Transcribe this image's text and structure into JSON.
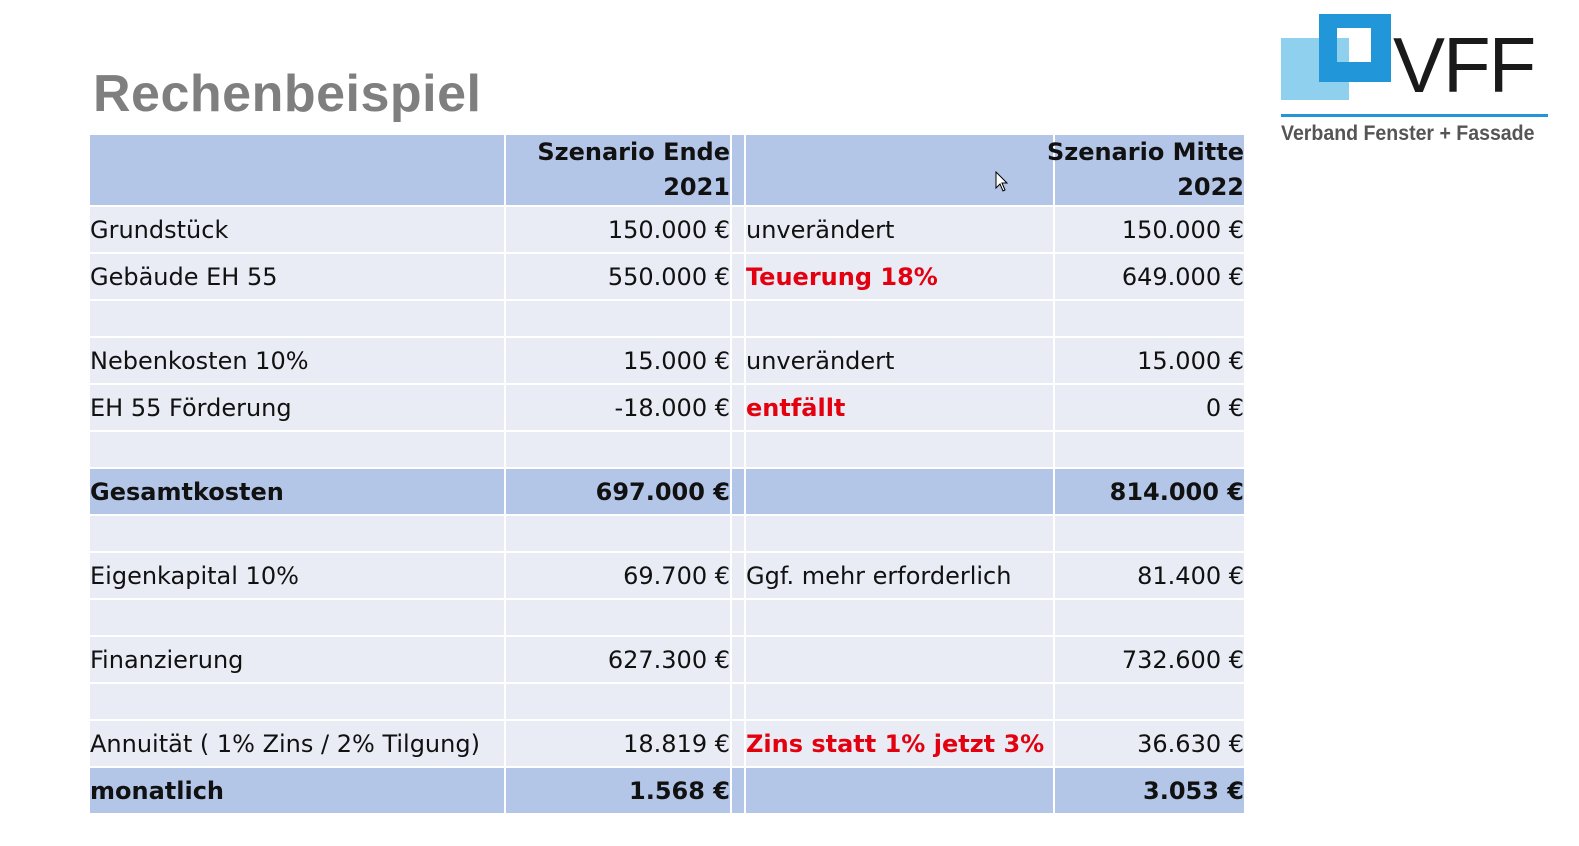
{
  "title": "Rechenbeispiel",
  "logo": {
    "name": "VFF",
    "subtitle": "Verband Fenster + Fassade"
  },
  "table": {
    "header": {
      "col2_line1": "Szenario Ende",
      "col2_line2": "2021",
      "col5_line1": "Szenario Mitte",
      "col5_line2": "2022"
    },
    "rows": [
      {
        "label": "Grundstück",
        "v2021": "150.000 €",
        "note": "unverändert",
        "note_red": false,
        "v2022": "150.000 €"
      },
      {
        "label": "Gebäude EH 55",
        "v2021": "550.000 €",
        "note": "Teuerung 18%",
        "note_red": true,
        "v2022": "649.000 €"
      },
      {
        "label": "",
        "v2021": "",
        "note": "",
        "note_red": false,
        "v2022": ""
      },
      {
        "label": "Nebenkosten 10%",
        "v2021": "15.000 €",
        "note": "unverändert",
        "note_red": false,
        "v2022": "15.000 €"
      },
      {
        "label": "EH 55 Förderung",
        "v2021": "-18.000 €",
        "note": "entfällt",
        "note_red": true,
        "v2022": "0 €"
      },
      {
        "label": "",
        "v2021": "",
        "note": "",
        "note_red": false,
        "v2022": ""
      },
      {
        "label": "Gesamtkosten",
        "v2021": "697.000 €",
        "note": "",
        "note_red": false,
        "v2022": "814.000 €",
        "total": true
      },
      {
        "label": "",
        "v2021": "",
        "note": "",
        "note_red": false,
        "v2022": ""
      },
      {
        "label": "Eigenkapital 10%",
        "v2021": "69.700 €",
        "note": "Ggf. mehr erforderlich",
        "note_red": false,
        "v2022": "81.400 €"
      },
      {
        "label": "",
        "v2021": "",
        "note": "",
        "note_red": false,
        "v2022": ""
      },
      {
        "label": "Finanzierung",
        "v2021": "627.300 €",
        "note": "",
        "note_red": false,
        "v2022": "732.600 €"
      },
      {
        "label": "",
        "v2021": "",
        "note": "",
        "note_red": false,
        "v2022": ""
      },
      {
        "label": "Annuität ( 1% Zins / 2% Tilgung)",
        "v2021": "18.819 €",
        "note": "Zins statt 1% jetzt 3%",
        "note_red": true,
        "v2022": "36.630 €"
      },
      {
        "label": "monatlich",
        "v2021": "1.568 €",
        "note": "",
        "note_red": false,
        "v2022": "3.053 €",
        "total": true
      }
    ]
  },
  "colors": {
    "header_bg": "#b4c6e7",
    "row_bg": "#e9ecf5",
    "accent_red": "#e3000f",
    "logo_blue": "#2196d9",
    "logo_light_blue": "#8fd0ef"
  }
}
